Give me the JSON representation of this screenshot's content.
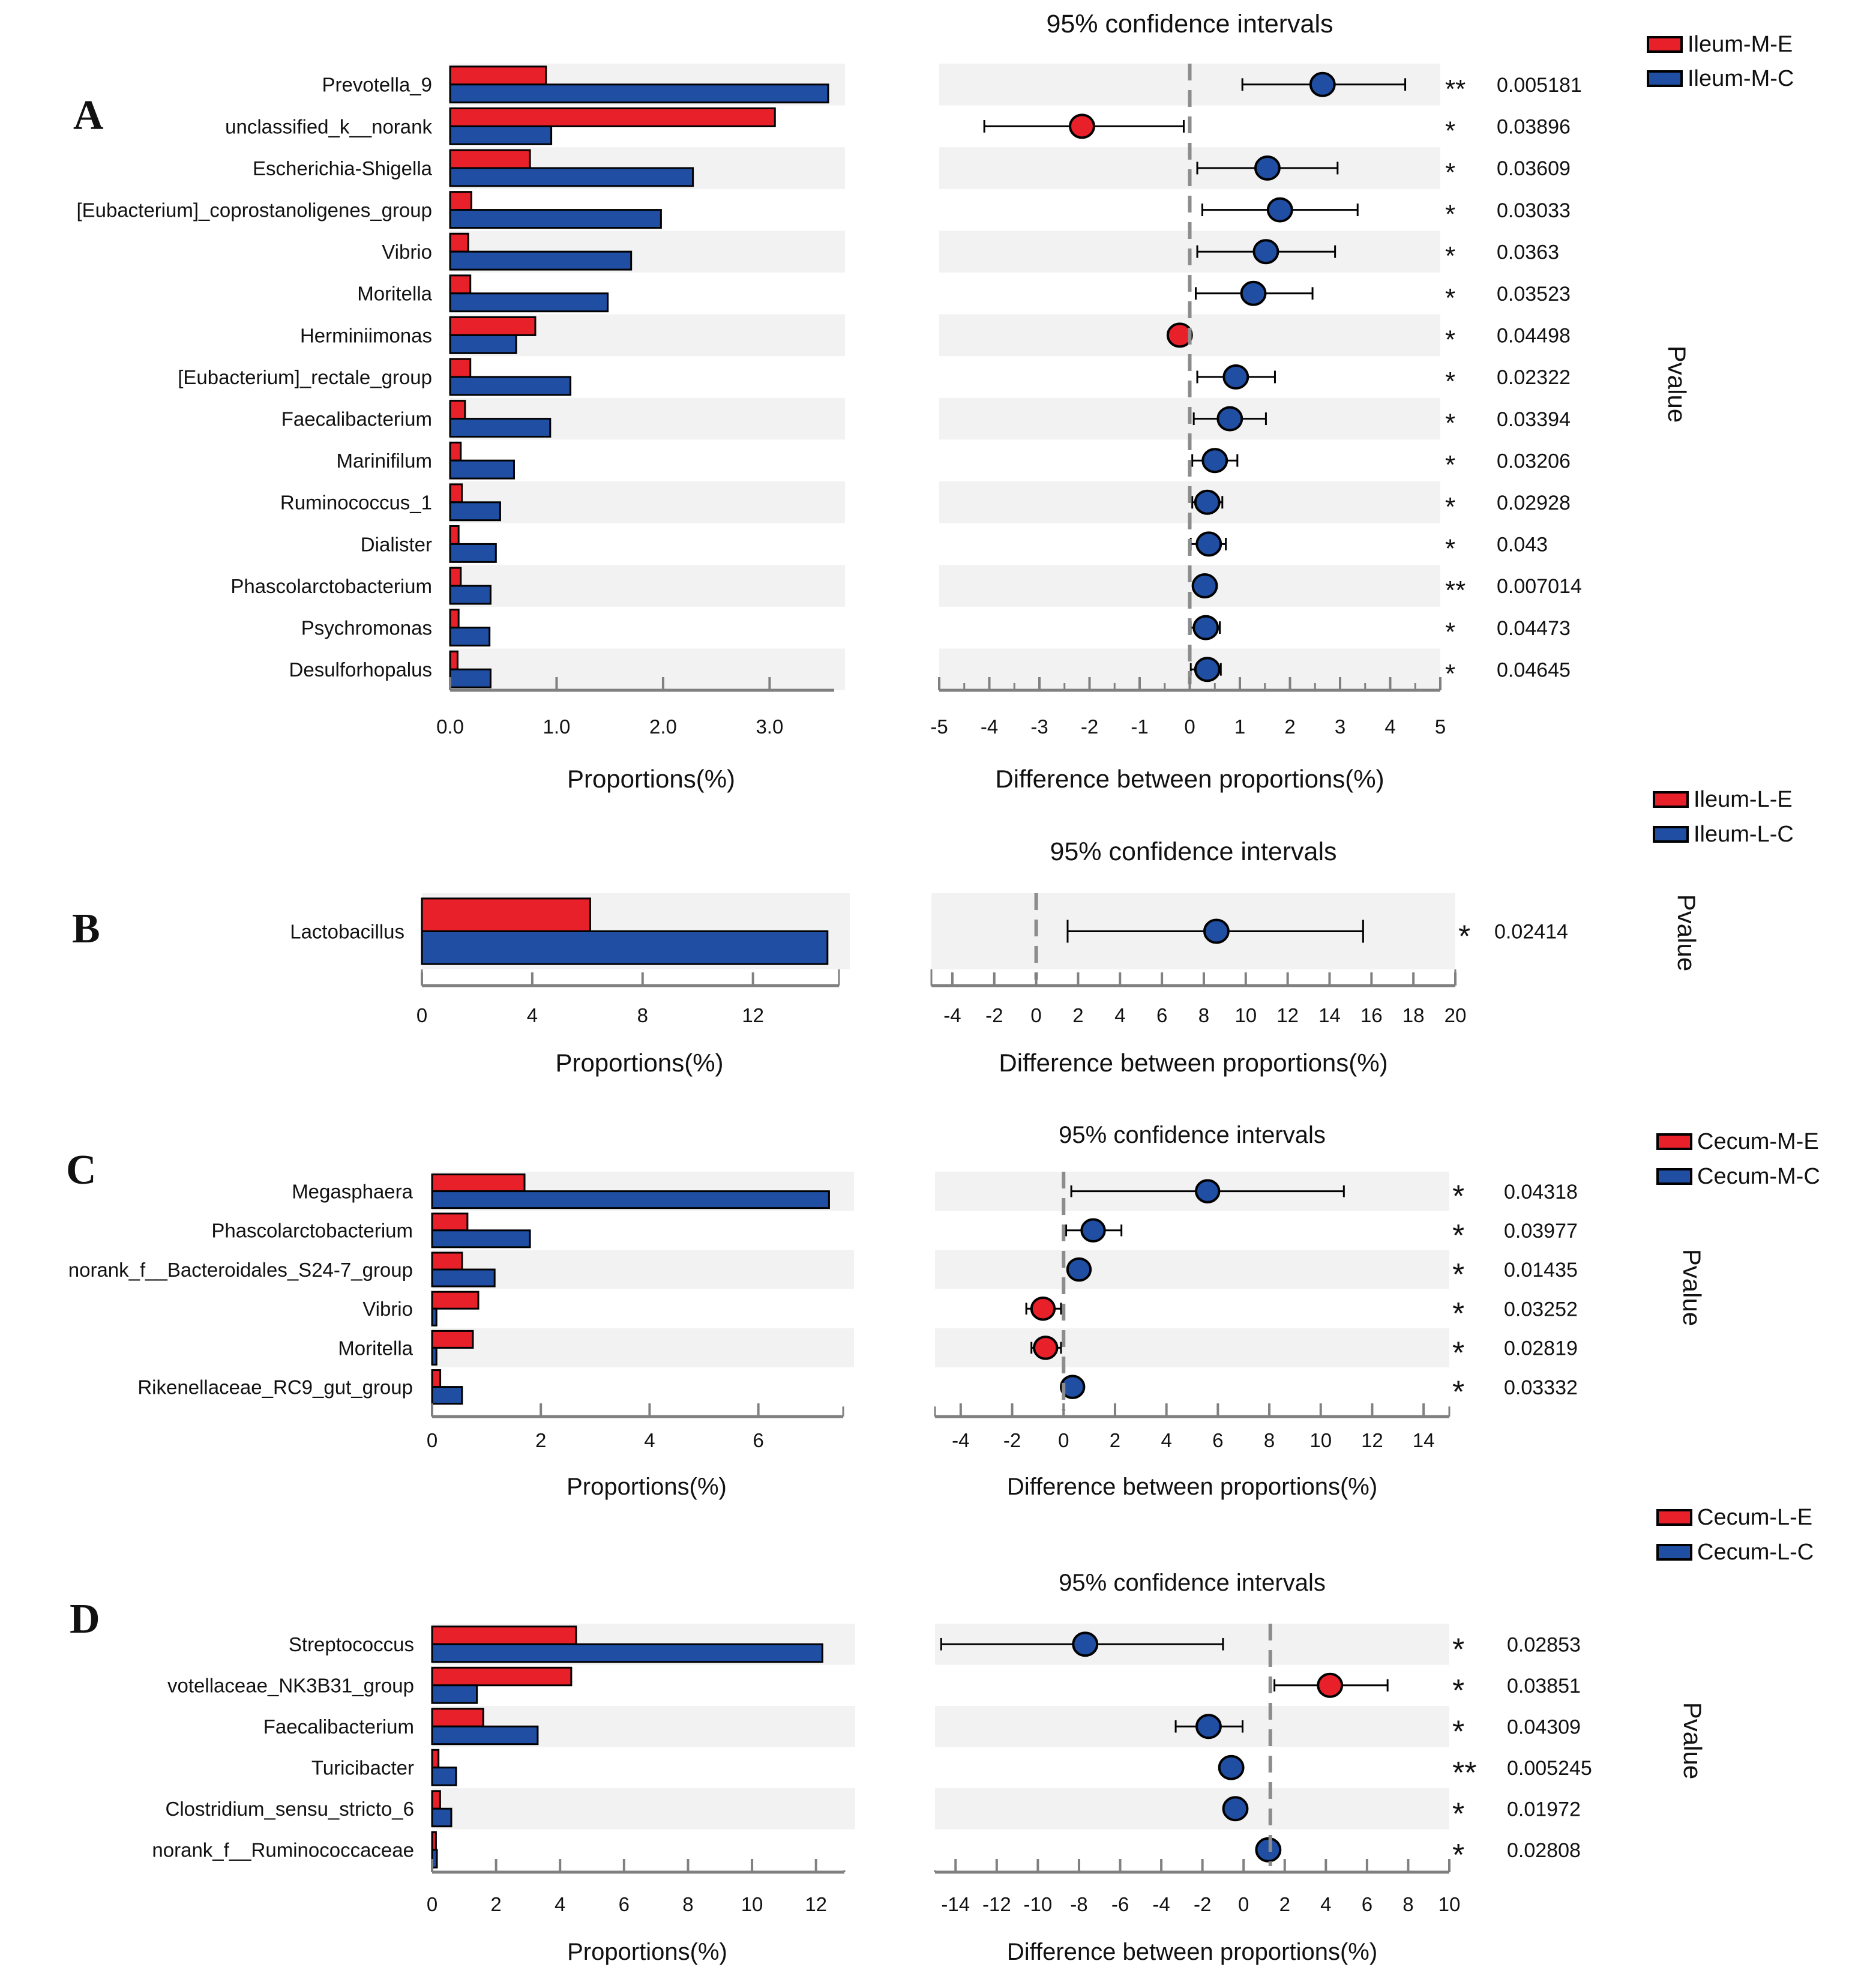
{
  "colors": {
    "group_a": "#e8202a",
    "group_b": "#1f4ea3",
    "stripe": "#f2f2f2",
    "axis": "#808080",
    "dash": "#8c8c8c",
    "text": "#111111"
  },
  "common": {
    "ci_title": "95% confidence intervals",
    "prop_xlabel": "Proportions(%)",
    "diff_xlabel": "Difference between proportions(%)",
    "pvalue_label": "Pvalue"
  },
  "chart_data": [
    {
      "type": "bar",
      "panel": "A",
      "legend": [
        "Ileum-M-E",
        "Ileum-M-C"
      ],
      "categories": [
        "Prevotella_9",
        "unclassified_k__norank",
        "Escherichia-Shigella",
        "[Eubacterium]_coprostanoligenes_group",
        "Vibrio",
        "Moritella",
        "Herminiimonas",
        "[Eubacterium]_rectale_group",
        "Faecalibacterium",
        "Marinifilum",
        "Ruminococcus_1",
        "Dialister",
        "Phascolarctobacterium",
        "Psychromonas",
        "Desulforhopalus"
      ],
      "series": [
        {
          "name": "Ileum-M-E",
          "values": [
            0.9,
            3.05,
            0.75,
            0.2,
            0.17,
            0.19,
            0.8,
            0.19,
            0.14,
            0.1,
            0.11,
            0.08,
            0.1,
            0.08,
            0.07
          ]
        },
        {
          "name": "Ileum-M-C",
          "values": [
            3.55,
            0.95,
            2.28,
            1.98,
            1.7,
            1.48,
            0.62,
            1.13,
            0.94,
            0.6,
            0.47,
            0.43,
            0.38,
            0.37,
            0.38
          ]
        }
      ],
      "prop_xlim": [
        0,
        3.55
      ],
      "prop_ticks": [
        0,
        1,
        2,
        3
      ],
      "prop_tick_labels": [
        "0.0",
        "1.0",
        "2.0",
        "3.0"
      ],
      "ci": {
        "estimates": [
          2.65,
          -2.15,
          1.55,
          1.8,
          1.52,
          1.27,
          -0.2,
          0.92,
          0.8,
          0.5,
          0.35,
          0.38,
          0.3,
          0.32,
          0.35
        ],
        "lower": [
          1.05,
          -4.1,
          0.15,
          0.25,
          0.15,
          0.12,
          -0.3,
          0.15,
          0.08,
          0.05,
          0.05,
          0.02,
          0.1,
          0.02,
          0.02
        ],
        "upper": [
          4.3,
          -0.12,
          2.95,
          3.35,
          2.9,
          2.45,
          -0.1,
          1.7,
          1.52,
          0.95,
          0.65,
          0.72,
          0.45,
          0.6,
          0.62
        ],
        "xlim": [
          -5,
          5
        ],
        "ticks": [
          -5,
          -4,
          -3,
          -2,
          -1,
          0,
          1,
          2,
          3,
          4,
          5
        ],
        "tick_labels": [
          "-5",
          "-4",
          "-3",
          "-2",
          "-1",
          "0",
          "1",
          "2",
          "3",
          "4",
          "5"
        ],
        "dashed_x": 0
      },
      "stars": [
        "**",
        "*",
        "*",
        "*",
        "*",
        "*",
        "*",
        "*",
        "*",
        "*",
        "*",
        "*",
        "**",
        "*",
        "*"
      ],
      "pvalues": [
        "0.005181",
        "0.03896",
        "0.03609",
        "0.03033",
        "0.0363",
        "0.03523",
        "0.04498",
        "0.02322",
        "0.03394",
        "0.03206",
        "0.02928",
        "0.043",
        "0.007014",
        "0.04473",
        "0.04645"
      ]
    },
    {
      "type": "bar",
      "panel": "B",
      "legend": [
        "Ileum-L-E",
        "Ileum-L-C"
      ],
      "categories": [
        "Lactobacillus"
      ],
      "series": [
        {
          "name": "Ileum-L-E",
          "values": [
            6.1
          ]
        },
        {
          "name": "Ileum-L-C",
          "values": [
            14.7
          ]
        }
      ],
      "prop_xlim": [
        0,
        14.9
      ],
      "prop_ticks": [
        0,
        4,
        8,
        12
      ],
      "prop_tick_labels": [
        "0",
        "4",
        "8",
        "12"
      ],
      "ci": {
        "estimates": [
          8.6
        ],
        "lower": [
          1.5
        ],
        "upper": [
          15.6
        ],
        "xlim": [
          -5,
          20
        ],
        "ticks": [
          -4,
          -2,
          0,
          2,
          4,
          6,
          8,
          10,
          12,
          14,
          16,
          18,
          20
        ],
        "tick_labels": [
          "-4",
          "-2",
          "0",
          "2",
          "4",
          "6",
          "8",
          "10",
          "12",
          "14",
          "16",
          "18",
          "20"
        ],
        "dashed_x": 0
      },
      "stars": [
        "*"
      ],
      "pvalues": [
        "0.02414"
      ]
    },
    {
      "type": "bar",
      "panel": "C",
      "legend": [
        "Cecum-M-E",
        "Cecum-M-C"
      ],
      "categories": [
        "Megasphaera",
        "Phascolarctobacterium",
        "norank_f__Bacteroidales_S24-7_group",
        "Vibrio",
        "Moritella",
        "Rikenellaceae_RC9_gut_group"
      ],
      "series": [
        {
          "name": "Cecum-M-E",
          "values": [
            1.7,
            0.65,
            0.55,
            0.85,
            0.75,
            0.15
          ]
        },
        {
          "name": "Cecum-M-C",
          "values": [
            7.3,
            1.8,
            1.15,
            0.08,
            0.08,
            0.55
          ]
        }
      ],
      "prop_xlim": [
        0,
        7.45
      ],
      "prop_ticks": [
        0,
        2,
        4,
        6
      ],
      "prop_tick_labels": [
        "0",
        "2",
        "4",
        "6"
      ],
      "ci": {
        "estimates": [
          5.6,
          1.15,
          0.6,
          -0.8,
          -0.7,
          0.35
        ],
        "lower": [
          0.3,
          0.1,
          0.25,
          -1.45,
          -1.25,
          0.05
        ],
        "upper": [
          10.9,
          2.25,
          1.0,
          -0.1,
          -0.1,
          0.65
        ],
        "xlim": [
          -5,
          15
        ],
        "ticks": [
          -4,
          -2,
          0,
          2,
          4,
          6,
          8,
          10,
          12,
          14
        ],
        "tick_labels": [
          "-4",
          "-2",
          "0",
          "2",
          "4",
          "6",
          "8",
          "10",
          "12",
          "14"
        ],
        "dashed_x": 0
      },
      "stars": [
        "*",
        "*",
        "*",
        "*",
        "*",
        "*"
      ],
      "pvalues": [
        "0.04318",
        "0.03977",
        "0.01435",
        "0.03252",
        "0.02819",
        "0.03332"
      ]
    },
    {
      "type": "bar",
      "panel": "D",
      "legend": [
        "Cecum-L-E",
        "Cecum-L-C"
      ],
      "categories": [
        "Streptococcus",
        "votellaceae_NK3B31_group",
        "Faecalibacterium",
        "Turicibacter",
        "Clostridium_sensu_stricto_6",
        "norank_f__Ruminococcaceae"
      ],
      "series": [
        {
          "name": "Cecum-L-E",
          "values": [
            4.5,
            4.35,
            1.6,
            0.2,
            0.25,
            0.12
          ]
        },
        {
          "name": "Cecum-L-C",
          "values": [
            12.2,
            1.4,
            3.3,
            0.75,
            0.6,
            0.15
          ]
        }
      ],
      "prop_xlim": [
        0,
        12.7
      ],
      "prop_ticks": [
        0,
        2,
        4,
        6,
        8,
        10,
        12
      ],
      "prop_tick_labels": [
        "0",
        "2",
        "4",
        "6",
        "8",
        "10",
        "12"
      ],
      "ci": {
        "estimates": [
          -7.7,
          4.2,
          -1.7,
          -0.6,
          -0.4,
          1.2
        ],
        "lower": [
          -14.7,
          1.5,
          -3.3,
          -0.9,
          -0.7,
          0.95
        ],
        "upper": [
          -1.0,
          7.0,
          -0.05,
          -0.3,
          -0.1,
          1.45
        ],
        "xlim": [
          -15,
          10
        ],
        "ticks": [
          -14,
          -12,
          -10,
          -8,
          -6,
          -4,
          -2,
          0,
          2,
          4,
          6,
          8,
          10
        ],
        "tick_labels": [
          "-14",
          "-12",
          "-10",
          "-8",
          "-6",
          "-4",
          "-2",
          "0",
          "2",
          "4",
          "6",
          "8",
          "10"
        ],
        "dashed_x": 1.3
      },
      "stars": [
        "*",
        "*",
        "*",
        "**",
        "*",
        "*"
      ],
      "pvalues": [
        "0.02853",
        "0.03851",
        "0.04309",
        "0.005245",
        "0.01972",
        "0.02808"
      ]
    }
  ]
}
